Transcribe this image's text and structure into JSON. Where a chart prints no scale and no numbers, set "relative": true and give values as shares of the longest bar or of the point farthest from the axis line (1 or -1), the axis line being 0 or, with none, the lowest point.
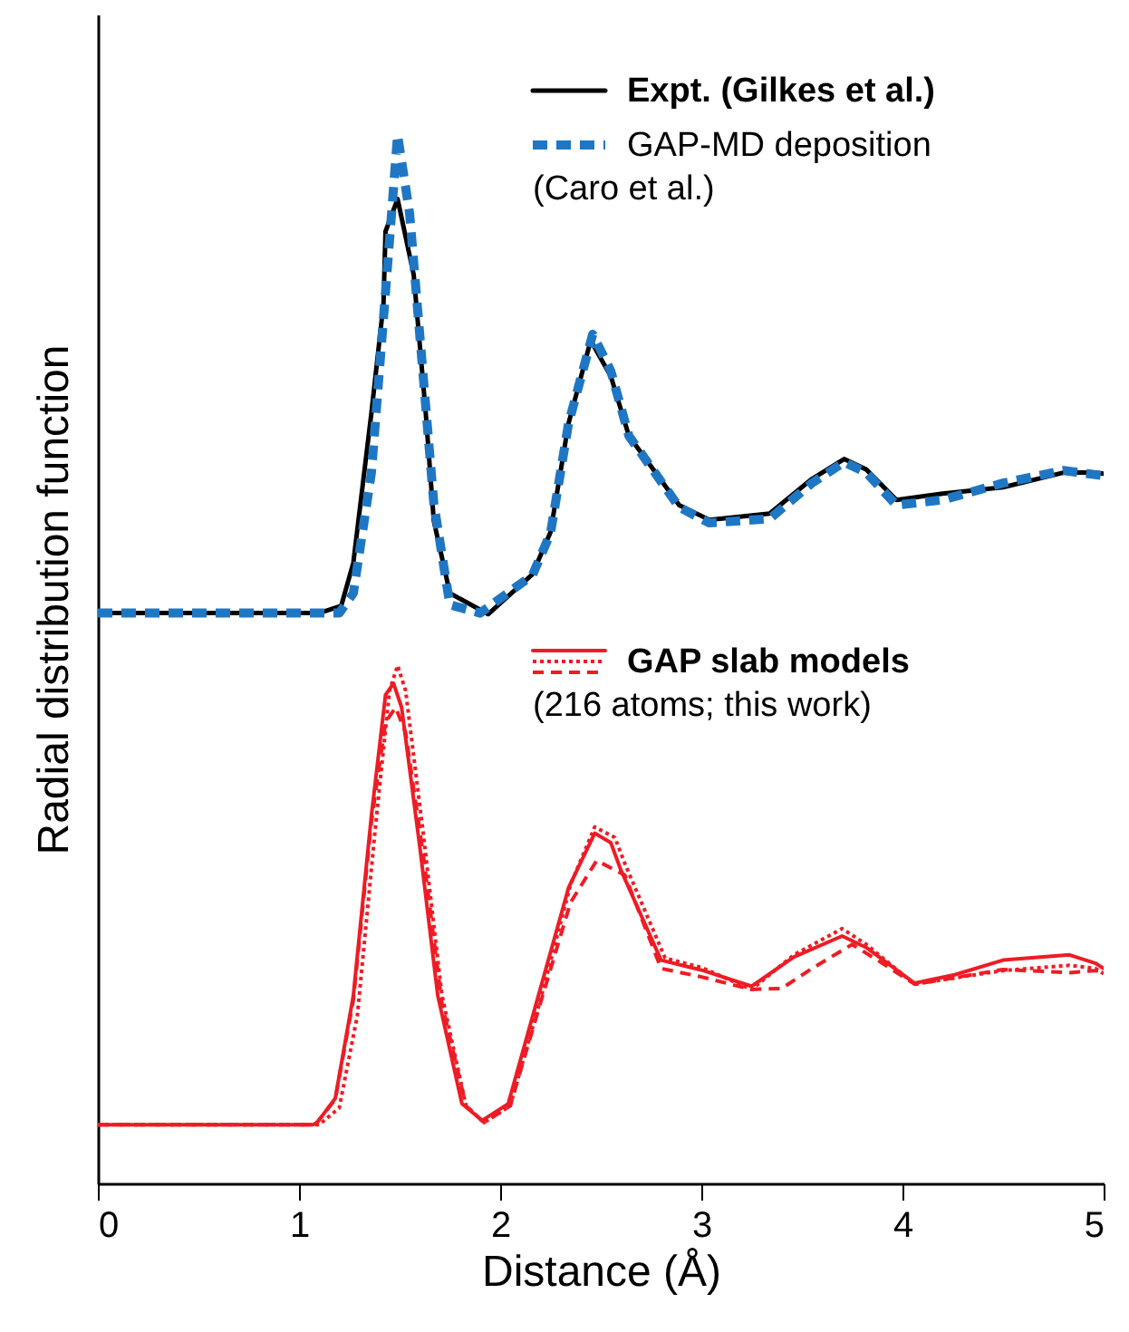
{
  "chart_data": {
    "type": "line",
    "relative": true,
    "xlabel": "Distance (Å)",
    "ylabel": "Radial distribution function",
    "xlim": [
      0,
      5
    ],
    "xticks": [
      0,
      1,
      2,
      3,
      4,
      5
    ],
    "legend": "top right",
    "series": [
      {
        "name": "Expt. (Gilkes et al.)",
        "color": "#000000",
        "line_style": "solid",
        "x": [
          0,
          1.1,
          1.21,
          1.27,
          1.36,
          1.42,
          1.43,
          1.49,
          1.57,
          1.63,
          1.67,
          1.75,
          1.94,
          2.16,
          2.25,
          2.34,
          2.45,
          2.55,
          2.64,
          2.89,
          3.04,
          3.34,
          3.55,
          3.71,
          3.82,
          3.97,
          4.2,
          4.5,
          4.8,
          4.96,
          5
        ],
        "values": [
          0.544,
          0.544,
          0.551,
          0.592,
          0.735,
          0.839,
          0.908,
          0.939,
          0.867,
          0.735,
          0.632,
          0.563,
          0.543,
          0.581,
          0.621,
          0.725,
          0.804,
          0.77,
          0.713,
          0.647,
          0.633,
          0.639,
          0.672,
          0.691,
          0.681,
          0.652,
          0.658,
          0.664,
          0.678,
          0.678,
          0.677
        ]
      },
      {
        "name": "GAP-MD deposition (Caro et al.)",
        "color": "#1f77c4",
        "line_style": "dashed",
        "x": [
          0,
          1.2,
          1.27,
          1.36,
          1.43,
          1.49,
          1.55,
          1.62,
          1.67,
          1.75,
          1.9,
          2.16,
          2.25,
          2.34,
          2.46,
          2.55,
          2.64,
          2.89,
          3.04,
          3.34,
          3.55,
          3.71,
          3.82,
          3.97,
          4.2,
          4.5,
          4.8,
          5
        ],
        "values": [
          0.544,
          0.544,
          0.563,
          0.678,
          0.85,
          1.0,
          0.925,
          0.764,
          0.649,
          0.552,
          0.544,
          0.58,
          0.62,
          0.725,
          0.81,
          0.775,
          0.713,
          0.645,
          0.63,
          0.634,
          0.668,
          0.688,
          0.678,
          0.647,
          0.652,
          0.668,
          0.68,
          0.675
        ]
      },
      {
        "name": "GAP slab models (216 atoms; this work)",
        "color": "#ee1c25",
        "line_style": "solid",
        "x": [
          0,
          1.07,
          1.09,
          1.18,
          1.27,
          1.36,
          1.43,
          1.47,
          1.51,
          1.6,
          1.69,
          1.81,
          1.91,
          2.04,
          2.19,
          2.34,
          2.47,
          2.55,
          2.6,
          2.8,
          3.01,
          3.25,
          3.46,
          3.7,
          3.82,
          4.06,
          4.26,
          4.5,
          4.83,
          4.96,
          5
        ],
        "values": [
          0.056,
          0.056,
          0.058,
          0.081,
          0.179,
          0.351,
          0.466,
          0.477,
          0.454,
          0.322,
          0.179,
          0.076,
          0.06,
          0.076,
          0.179,
          0.282,
          0.334,
          0.325,
          0.299,
          0.213,
          0.203,
          0.188,
          0.216,
          0.236,
          0.225,
          0.191,
          0.199,
          0.213,
          0.218,
          0.21,
          0.205
        ]
      },
      {
        "color": "#ee1c25",
        "line_style": "dotted",
        "x": [
          0,
          1.1,
          1.2,
          1.29,
          1.38,
          1.45,
          1.49,
          1.53,
          1.62,
          1.71,
          1.83,
          1.92,
          2.05,
          2.2,
          2.35,
          2.47,
          2.57,
          2.62,
          2.82,
          3.0,
          3.25,
          3.46,
          3.7,
          3.82,
          4.06,
          4.26,
          4.5,
          4.83,
          4.96,
          5
        ],
        "values": [
          0.056,
          0.056,
          0.072,
          0.16,
          0.34,
          0.47,
          0.494,
          0.47,
          0.33,
          0.18,
          0.074,
          0.058,
          0.074,
          0.175,
          0.285,
          0.34,
          0.33,
          0.305,
          0.215,
          0.206,
          0.185,
          0.218,
          0.243,
          0.228,
          0.19,
          0.196,
          0.203,
          0.208,
          0.205,
          0.2
        ]
      },
      {
        "color": "#ee1c25",
        "line_style": "dashed",
        "x": [
          0,
          1.08,
          1.18,
          1.27,
          1.36,
          1.43,
          1.48,
          1.53,
          1.62,
          1.71,
          1.83,
          1.92,
          2.05,
          2.2,
          2.35,
          2.48,
          2.62,
          2.8,
          3.0,
          3.25,
          3.4,
          3.55,
          3.75,
          3.9,
          4.06,
          4.5,
          4.83,
          4.96,
          5
        ],
        "values": [
          0.056,
          0.056,
          0.08,
          0.175,
          0.345,
          0.44,
          0.454,
          0.43,
          0.31,
          0.172,
          0.074,
          0.058,
          0.074,
          0.172,
          0.268,
          0.308,
          0.294,
          0.205,
          0.197,
          0.185,
          0.186,
          0.205,
          0.228,
          0.21,
          0.19,
          0.204,
          0.201,
          0.203,
          0.203
        ]
      }
    ]
  }
}
